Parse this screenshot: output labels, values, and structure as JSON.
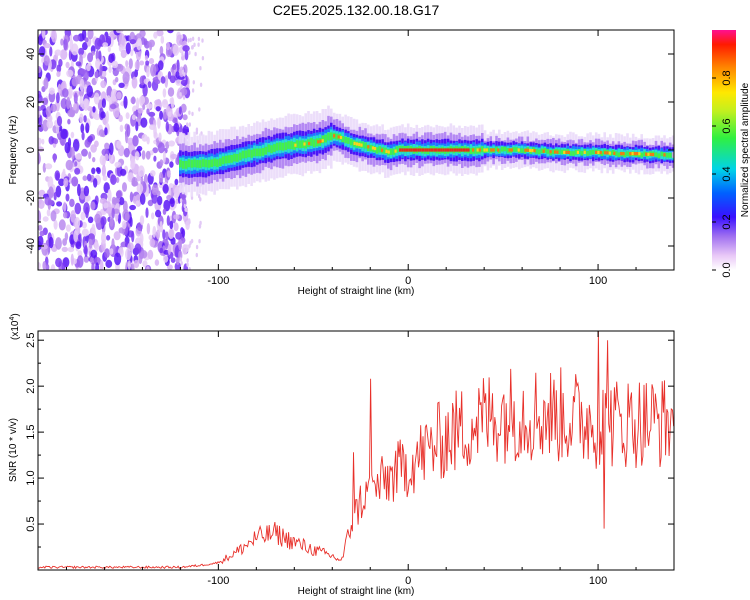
{
  "title": "C2E5.2025.132.00.18.G17",
  "chart_data": [
    {
      "type": "heatmap",
      "xlabel": "Height of straight line (km)",
      "ylabel": "Frequency (Hz)",
      "xlim": [
        -195,
        140
      ],
      "ylim": [
        -50,
        50
      ],
      "xticks": [
        -100,
        0,
        100
      ],
      "yticks": [
        40,
        20,
        0,
        -20,
        -40
      ],
      "colorbar": {
        "label": "Normalized spectral amplitude",
        "range": [
          0,
          1
        ],
        "ticks": [
          "0.0",
          "0.2",
          "0.4",
          "0.6",
          "0.8"
        ]
      },
      "noise_region_x": [
        -195,
        -120
      ],
      "ridge": {
        "x": [
          -120,
          -110,
          -100,
          -90,
          -80,
          -70,
          -60,
          -50,
          -45,
          -40,
          -35,
          -30,
          -25,
          -20,
          -15,
          -10,
          -5,
          0,
          10,
          20,
          30,
          40,
          50,
          60,
          70,
          80,
          90,
          100,
          110,
          120,
          130,
          140
        ],
        "freq": [
          -6,
          -6,
          -5,
          -3,
          -1,
          1,
          2,
          3,
          4,
          6,
          5,
          3,
          2,
          1,
          0,
          -1,
          0,
          0,
          0,
          0,
          0,
          0,
          0,
          0,
          -0.5,
          -1,
          -1,
          -1,
          -1.5,
          -1.5,
          -2,
          -2
        ]
      }
    },
    {
      "type": "line",
      "xlabel": "Height of straight line (km)",
      "ylabel": "SNR (10 * v/v)",
      "y_multiplier": "(x10",
      "y_multiplier_exp": "4",
      "xlim": [
        -195,
        140
      ],
      "ylim": [
        0,
        2.6
      ],
      "xticks": [
        -100,
        0,
        100
      ],
      "yticks": [
        0.5,
        1.0,
        1.5,
        2.0,
        2.5
      ],
      "color": "#e8302a",
      "envelope": {
        "x": [
          -195,
          -120,
          -110,
          -100,
          -90,
          -80,
          -70,
          -60,
          -50,
          -40,
          -35,
          -30,
          -25,
          -20,
          -10,
          0,
          10,
          20,
          30,
          40,
          50,
          60,
          70,
          80,
          90,
          100,
          110,
          120,
          130,
          140
        ],
        "y": [
          0.03,
          0.03,
          0.05,
          0.08,
          0.2,
          0.35,
          0.4,
          0.3,
          0.22,
          0.15,
          0.1,
          0.5,
          0.75,
          0.85,
          1.0,
          1.15,
          1.3,
          1.45,
          1.55,
          1.65,
          1.7,
          1.72,
          1.7,
          1.68,
          1.65,
          1.6,
          1.6,
          1.62,
          1.62,
          1.6
        ]
      },
      "spikes": [
        {
          "x": -29,
          "y": 1.28
        },
        {
          "x": -20,
          "y": 2.08
        },
        {
          "x": 100,
          "y": 2.6
        },
        {
          "x": 103,
          "y": 0.45
        },
        {
          "x": 105,
          "y": 2.5
        }
      ]
    }
  ]
}
